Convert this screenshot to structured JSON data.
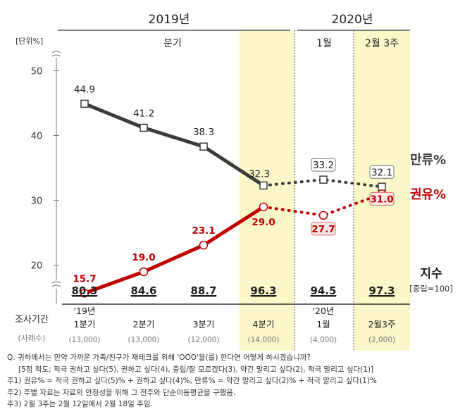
{
  "header": {
    "year_left": "2019년",
    "year_right": "2020년",
    "group_quarter": "분기",
    "group_jan": "1월",
    "group_feb": "2월 3주",
    "unit": "[단위%]"
  },
  "chart_data": {
    "type": "line",
    "categories": [
      "'19년 1분기",
      "2분기",
      "3분기",
      "4분기",
      "'20년 1월",
      "2월3주"
    ],
    "yticks": [
      20,
      30,
      40,
      50
    ],
    "ylim": [
      14,
      52
    ],
    "series": [
      {
        "name": "만류%",
        "color": "#3c3c3c",
        "values": [
          44.9,
          41.2,
          38.3,
          32.3,
          33.2,
          32.1
        ],
        "labels": [
          "44.9",
          "41.2",
          "38.3",
          "32.3",
          "33.2",
          "32.1"
        ]
      },
      {
        "name": "권유%",
        "color": "#c00000",
        "values": [
          15.7,
          19.0,
          23.1,
          29.0,
          27.7,
          31.0
        ],
        "labels": [
          "15.7",
          "19.0",
          "23.1",
          "29.0",
          "27.7",
          "31.0"
        ]
      }
    ],
    "index": {
      "title": "지수",
      "subtitle": "[중립=100]",
      "values": [
        "80.3",
        "84.6",
        "88.7",
        "96.3",
        "94.5",
        "97.3"
      ]
    }
  },
  "survey": {
    "label": "조사기간",
    "sample_label": "(사례수)",
    "periods": [
      {
        "line1": "'19년",
        "line2": "1분기",
        "n": "(13,000)"
      },
      {
        "line1": "",
        "line2": "2분기",
        "n": "(13,000)"
      },
      {
        "line1": "",
        "line2": "3분기",
        "n": "(12,000)"
      },
      {
        "line1": "",
        "line2": "4분기",
        "n": "(14,000)"
      },
      {
        "line1": "'20년",
        "line2": "1월",
        "n": "(4,000)"
      },
      {
        "line1": "",
        "line2": "2월3주",
        "n": "(2,000)"
      }
    ]
  },
  "notes": [
    "Q. 귀하께서는 만약 가까운 가족/친구가 재테크를 위해 'OOO'을(를) 한다면 어떻게 하시겠습니까?",
    "[5점 척도; 적극 권하고 싶다(5), 권하고 싶다(4), 중립/잘 모르겠다(3), 약간 말리고 싶다(2), 적극 말리고 싶다(1)]",
    "주1) 권유% = 적극 권하고 싶다(5)% + 권하고 싶다(4)%, 만류% = 약간 말리고 싶다(2)% + 적극 말리고 싶다(1)%",
    "주2) 주별 자료는 자료의 안정성을 위해 그 전주와 단순이동평균을 구했음.",
    "주3) 2월 3주는 2월 12일에서 2월 18일 주임."
  ]
}
